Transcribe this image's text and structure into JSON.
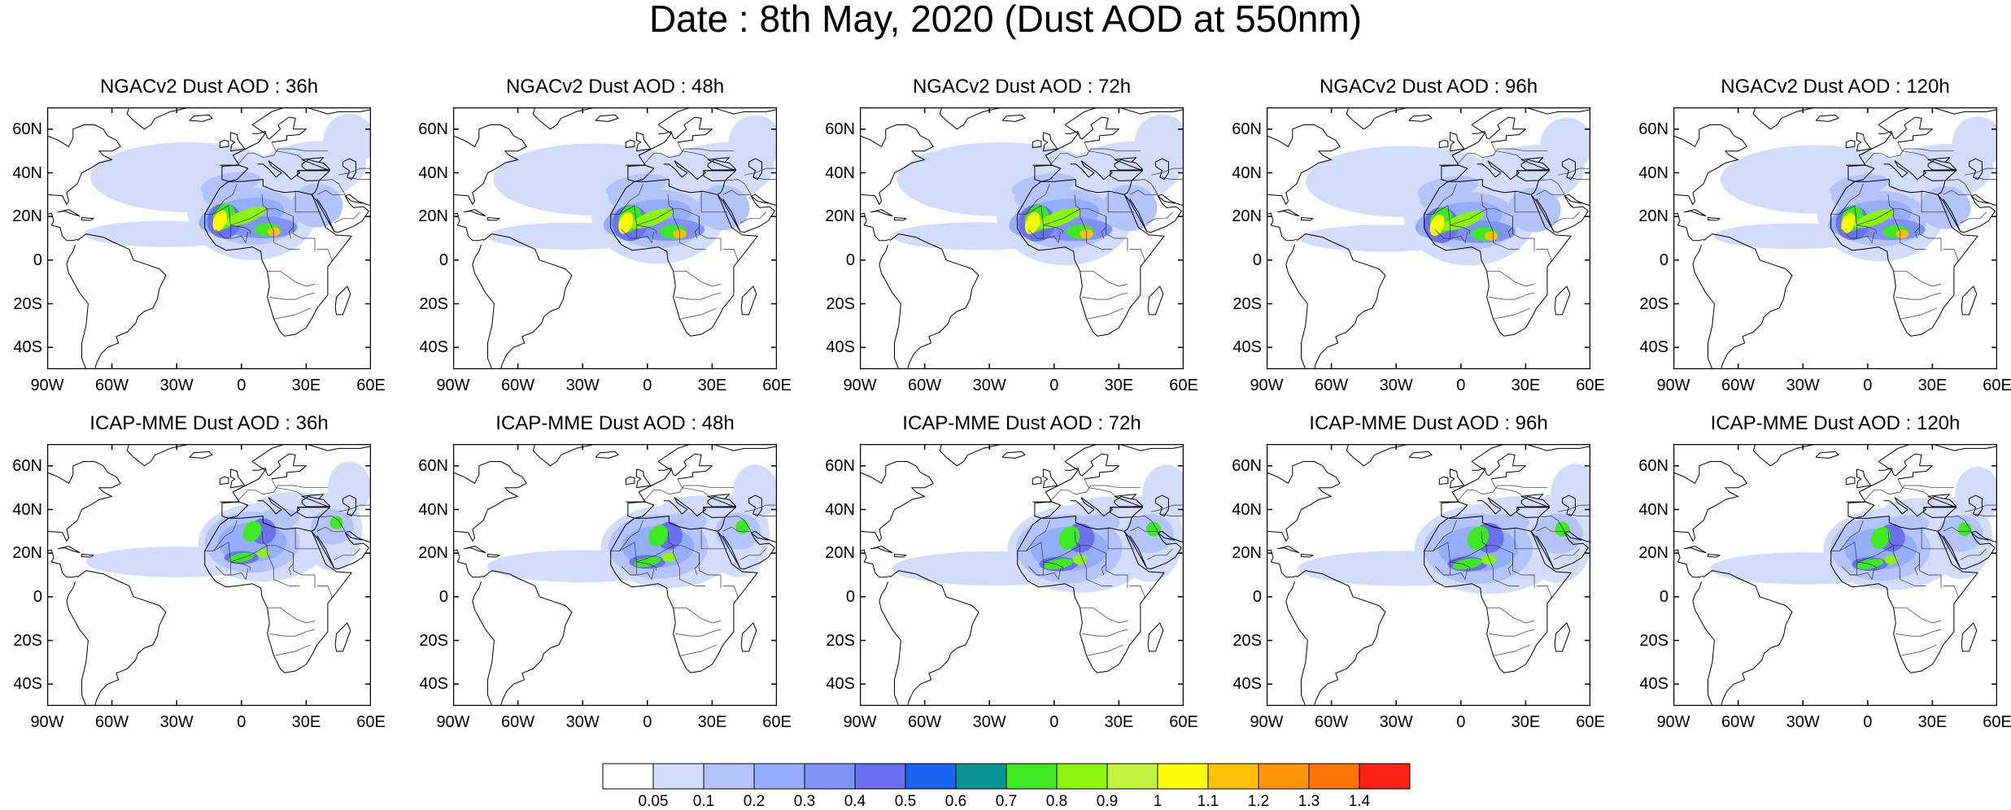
{
  "title": "Date : 8th May, 2020 (Dust AOD at 550nm)",
  "lat_ticks": [
    "60N",
    "40N",
    "20N",
    "0",
    "20S",
    "40S"
  ],
  "lon_ticks": [
    "90W",
    "60W",
    "30W",
    "0",
    "30E",
    "60E"
  ],
  "lat_values": [
    60,
    40,
    20,
    0,
    -20,
    -40
  ],
  "lon_values": [
    -90,
    -60,
    -30,
    0,
    30,
    60
  ],
  "map_extent": {
    "lon": [
      -90,
      60
    ],
    "lat": [
      -50,
      70
    ]
  },
  "panels": [
    {
      "title": "NGACv2 Dust AOD : 36h",
      "model": "NGACv2",
      "lead": "36h"
    },
    {
      "title": "NGACv2 Dust AOD : 48h",
      "model": "NGACv2",
      "lead": "48h"
    },
    {
      "title": "NGACv2 Dust AOD : 72h",
      "model": "NGACv2",
      "lead": "72h"
    },
    {
      "title": "NGACv2 Dust AOD : 96h",
      "model": "NGACv2",
      "lead": "96h"
    },
    {
      "title": "NGACv2 Dust AOD : 120h",
      "model": "NGACv2",
      "lead": "120h"
    },
    {
      "title": "ICAP-MME Dust AOD : 36h",
      "model": "ICAP-MME",
      "lead": "36h"
    },
    {
      "title": "ICAP-MME Dust AOD : 48h",
      "model": "ICAP-MME",
      "lead": "48h"
    },
    {
      "title": "ICAP-MME Dust AOD : 72h",
      "model": "ICAP-MME",
      "lead": "72h"
    },
    {
      "title": "ICAP-MME Dust AOD : 96h",
      "model": "ICAP-MME",
      "lead": "96h"
    },
    {
      "title": "ICAP-MME Dust AOD : 120h",
      "model": "ICAP-MME",
      "lead": "120h"
    }
  ],
  "colorbar": {
    "labels": [
      "0.05",
      "0.1",
      "0.2",
      "0.3",
      "0.4",
      "0.5",
      "0.6",
      "0.7",
      "0.8",
      "0.9",
      "1",
      "1.1",
      "1.2",
      "1.3",
      "1.4"
    ],
    "colors": [
      "#ffffff",
      "#d3dcfb",
      "#b4c4fb",
      "#95aefc",
      "#7f93f6",
      "#6a70ee",
      "#1c63ef",
      "#0b9494",
      "#3ee822",
      "#8df50d",
      "#c0f23e",
      "#fdfb08",
      "#fcc107",
      "#fc9407",
      "#fc7405",
      "#fb2116"
    ]
  }
}
